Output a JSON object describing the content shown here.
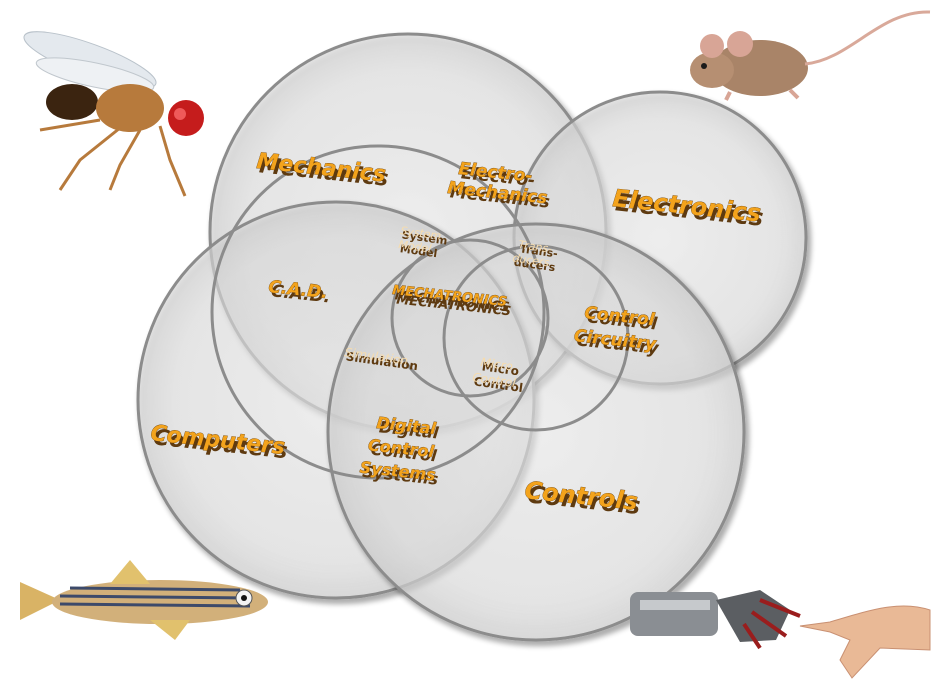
{
  "diagram": {
    "labels": {
      "mechanics": "Mechanics",
      "electronics": "Electronics",
      "computers": "Computers",
      "controls": "Controls",
      "electromechanics_1": "Electro-",
      "electromechanics_2": "Mechanics",
      "cad": "C.A.D.",
      "control_circuitry_1": "Control",
      "control_circuitry_2": "Circuitry",
      "digital_control_1": "Digital",
      "digital_control_2": "Control",
      "digital_control_3": "Systems",
      "system_model_1": "System",
      "system_model_2": "Model",
      "transducers_1": "Trans-",
      "transducers_2": "ducers",
      "mechatronics": "MECHATRONICS",
      "simulation": "Simulation",
      "micro_control_1": "Micro",
      "micro_control_2": "Control"
    },
    "colors": {
      "label_fill": "#f3a31c",
      "label_extrude": "#5e3a10",
      "circle_fill": "#efefef",
      "circle_stroke": "#9a9a9a"
    }
  },
  "images": {
    "fruit_fly": "fruit-fly-photo",
    "mouse": "mouse-photo",
    "zebrafish": "zebrafish-photo",
    "robot_and_human_hands": "robot-hand-and-human-hand-photo"
  }
}
